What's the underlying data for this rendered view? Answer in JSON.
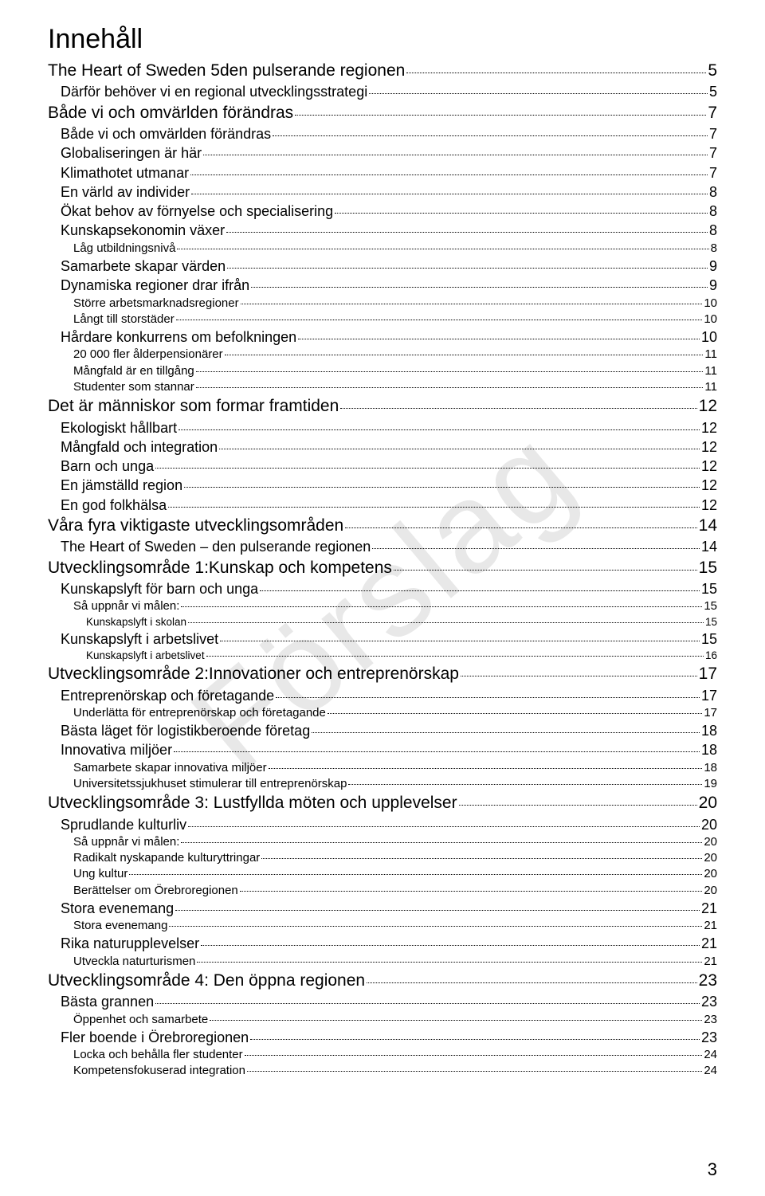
{
  "title": "Innehåll",
  "watermark": "Förslag",
  "pageNumber": "3",
  "toc": [
    {
      "level": 1,
      "text": "The Heart of Sweden 5den pulserande regionen",
      "page": "5"
    },
    {
      "level": 2,
      "text": "Därför behöver vi en regional utvecklingsstrategi",
      "page": "5"
    },
    {
      "level": 1,
      "text": "Både vi och omvärlden förändras",
      "page": "7"
    },
    {
      "level": 2,
      "text": "Både vi och omvärlden förändras",
      "page": "7"
    },
    {
      "level": 2,
      "text": "Globaliseringen är här",
      "page": "7"
    },
    {
      "level": 2,
      "text": "Klimathotet utmanar",
      "page": "7"
    },
    {
      "level": 2,
      "text": "En värld av individer",
      "page": "8"
    },
    {
      "level": 2,
      "text": "Ökat behov av förnyelse och specialisering",
      "page": "8"
    },
    {
      "level": 2,
      "text": "Kunskapsekonomin växer",
      "page": "8"
    },
    {
      "level": 3,
      "text": "Låg utbildningsnivå",
      "page": "8"
    },
    {
      "level": 2,
      "text": "Samarbete skapar värden",
      "page": "9"
    },
    {
      "level": 2,
      "text": "Dynamiska regioner drar ifrån",
      "page": "9"
    },
    {
      "level": 3,
      "text": "Större arbetsmarknadsregioner",
      "page": "10"
    },
    {
      "level": 3,
      "text": "Långt till storstäder",
      "page": "10"
    },
    {
      "level": 2,
      "text": "Hårdare konkurrens om befolkningen",
      "page": "10"
    },
    {
      "level": 3,
      "text": "20 000 fler ålderpensionärer",
      "page": "11"
    },
    {
      "level": 3,
      "text": "Mångfald är en tillgång",
      "page": "11"
    },
    {
      "level": 3,
      "text": "Studenter som stannar",
      "page": "11"
    },
    {
      "level": 1,
      "text": "Det är människor som formar framtiden",
      "page": "12"
    },
    {
      "level": 2,
      "text": "Ekologiskt hållbart",
      "page": "12"
    },
    {
      "level": 2,
      "text": "Mångfald och integration",
      "page": "12"
    },
    {
      "level": 2,
      "text": "Barn och unga",
      "page": "12"
    },
    {
      "level": 2,
      "text": "En jämställd region",
      "page": "12"
    },
    {
      "level": 2,
      "text": "En god folkhälsa",
      "page": "12"
    },
    {
      "level": 1,
      "text": "Våra fyra viktigaste utvecklingsområden",
      "page": "14"
    },
    {
      "level": 2,
      "text": "The Heart of Sweden – den pulserande regionen",
      "page": "14"
    },
    {
      "level": 1,
      "text": "Utvecklingsområde 1:Kunskap och kompetens",
      "page": "15"
    },
    {
      "level": 2,
      "text": "Kunskapslyft för barn och unga",
      "page": "15"
    },
    {
      "level": 3,
      "text": "Så uppnår vi målen:",
      "page": "15"
    },
    {
      "level": 4,
      "text": "Kunskapslyft i skolan",
      "page": "15"
    },
    {
      "level": 2,
      "text": "Kunskapslyft i arbetslivet",
      "page": "15"
    },
    {
      "level": 4,
      "text": "Kunskapslyft i arbetslivet",
      "page": "16"
    },
    {
      "level": 1,
      "text": "Utvecklingsområde 2:Innovationer och entreprenörskap",
      "page": "17"
    },
    {
      "level": 2,
      "text": "Entreprenörskap och företagande",
      "page": "17"
    },
    {
      "level": 3,
      "text": "Underlätta för entreprenörskap och företagande",
      "page": "17"
    },
    {
      "level": 2,
      "text": "Bästa läget för logistikberoende företag",
      "page": "18"
    },
    {
      "level": 2,
      "text": "Innovativa miljöer",
      "page": "18"
    },
    {
      "level": 3,
      "text": "Samarbete skapar innovativa miljöer",
      "page": "18"
    },
    {
      "level": 3,
      "text": "Universitetssjukhuset stimulerar till entreprenörskap",
      "page": "19"
    },
    {
      "level": 1,
      "text": "Utvecklingsområde 3: Lustfyllda möten och upplevelser",
      "page": "20"
    },
    {
      "level": 2,
      "text": "Sprudlande kulturliv",
      "page": "20"
    },
    {
      "level": 3,
      "text": "Så uppnår vi målen:",
      "page": "20"
    },
    {
      "level": 3,
      "text": "Radikalt nyskapande kulturyttringar",
      "page": "20"
    },
    {
      "level": 3,
      "text": "Ung kultur",
      "page": "20"
    },
    {
      "level": 3,
      "text": "Berättelser om Örebroregionen",
      "page": "20"
    },
    {
      "level": 2,
      "text": "Stora evenemang",
      "page": "21"
    },
    {
      "level": 3,
      "text": "Stora evenemang",
      "page": "21"
    },
    {
      "level": 2,
      "text": "Rika naturupplevelser",
      "page": "21"
    },
    {
      "level": 3,
      "text": "Utveckla naturturismen",
      "page": "21"
    },
    {
      "level": 1,
      "text": "Utvecklingsområde 4: Den öppna regionen",
      "page": "23"
    },
    {
      "level": 2,
      "text": "Bästa grannen",
      "page": "23"
    },
    {
      "level": 3,
      "text": "Öppenhet och samarbete",
      "page": "23"
    },
    {
      "level": 2,
      "text": "Fler boende i Örebroregionen",
      "page": "23"
    },
    {
      "level": 3,
      "text": "Locka och behålla fler studenter",
      "page": "24"
    },
    {
      "level": 3,
      "text": "Kompetensfokuserad integration",
      "page": "24"
    }
  ]
}
